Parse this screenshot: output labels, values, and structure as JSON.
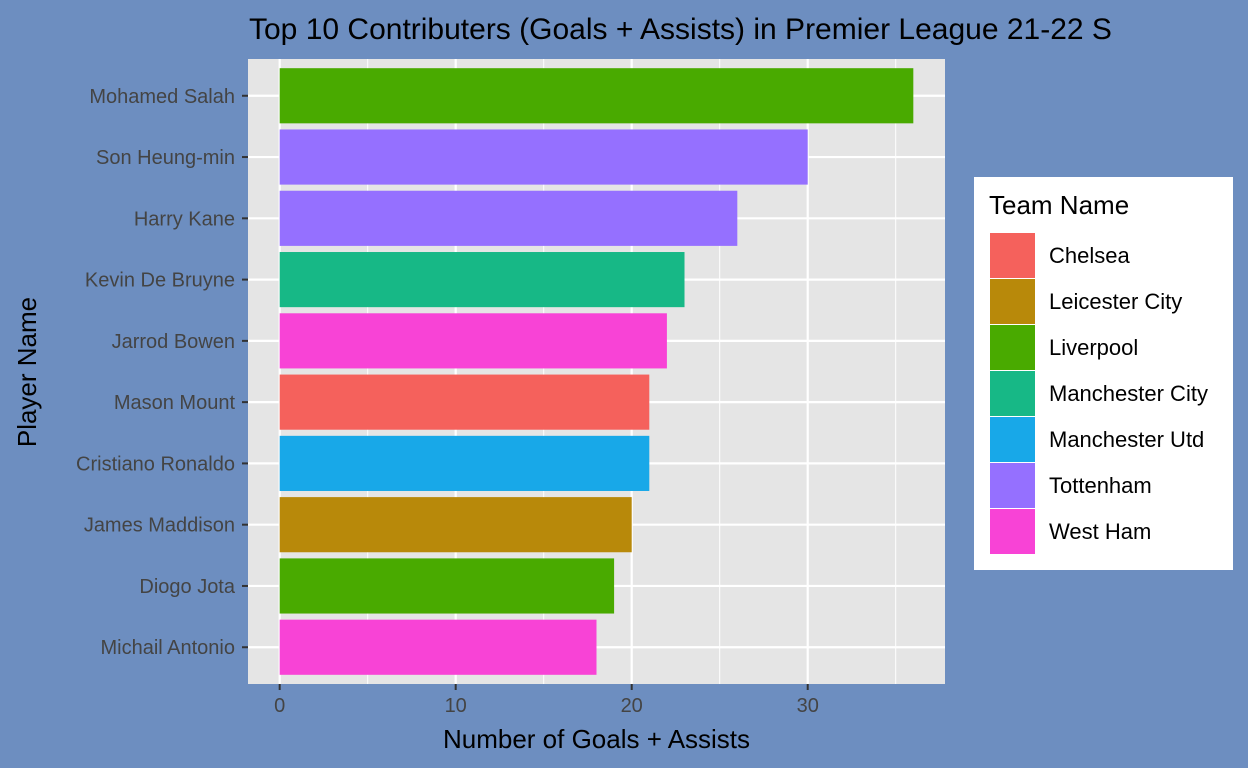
{
  "chart_data": {
    "type": "bar",
    "orientation": "horizontal",
    "title": "Top 10 Contributers (Goals + Assists) in Premier League 21-22 S",
    "xlabel": "Number of Goals + Assists",
    "ylabel": "Player Name",
    "xlim": [
      -1.8,
      37.8
    ],
    "xticks": [
      0,
      10,
      20,
      30
    ],
    "grid": true,
    "legend": {
      "title": "Team Name",
      "position": "right"
    },
    "teams": [
      {
        "name": "Chelsea",
        "color": "#f8766d"
      },
      {
        "name": "Leicester City",
        "color": "#b79f00"
      },
      {
        "name": "Liverpool",
        "color": "#00ba38"
      },
      {
        "name": "Manchester City",
        "color": "#00bf7d"
      },
      {
        "name": "Manchester Utd",
        "color": "#00b0f6"
      },
      {
        "name": "Tottenham",
        "color": "#9590ff"
      },
      {
        "name": "West Ham",
        "color": "#f564e3"
      }
    ],
    "bars": [
      {
        "player": "Mohamed Salah",
        "value": 36,
        "team": "Liverpool"
      },
      {
        "player": "Son Heung-min",
        "value": 30,
        "team": "Tottenham"
      },
      {
        "player": "Harry Kane",
        "value": 26,
        "team": "Tottenham"
      },
      {
        "player": "Kevin De Bruyne",
        "value": 23,
        "team": "Manchester City"
      },
      {
        "player": "Jarrod Bowen",
        "value": 22,
        "team": "West Ham"
      },
      {
        "player": "Mason Mount",
        "value": 21,
        "team": "Chelsea"
      },
      {
        "player": "Cristiano Ronaldo",
        "value": 21,
        "team": "Manchester Utd"
      },
      {
        "player": "James Maddison",
        "value": 20,
        "team": "Leicester City"
      },
      {
        "player": "Diogo Jota",
        "value": 19,
        "team": "Liverpool"
      },
      {
        "player": "Michail Antonio",
        "value": 18,
        "team": "West Ham"
      }
    ]
  },
  "colors": {
    "background": "#6d8ec0",
    "panel": "#e5e5e5",
    "grid": "#ffffff",
    "liverpool_display": "#49aa00",
    "manchester_city_display": "#17b886",
    "manchester_utd_display": "#18a8e8",
    "leicester_display": "#b8890a",
    "tottenham_display": "#9570ff",
    "west_ham_display": "#f843d6",
    "chelsea_display": "#f5615c"
  }
}
